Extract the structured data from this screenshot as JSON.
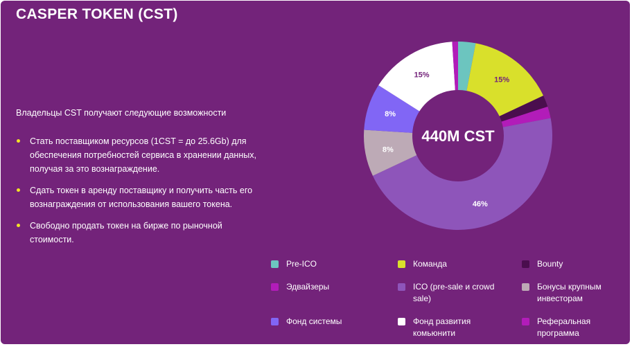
{
  "header": {
    "title": "CASPER TOKEN (CST)"
  },
  "intro": "Владельцы CST получают следующие возможности",
  "bullets": [
    "Стать поставщиком ресурсов (1CST = до 25.6Gb) для обеспечения потребностей сервиса в хранении данных, получая за это вознаграждение.",
    "Сдать токен в аренду поставщику и получить часть его вознаграждения от использования вашего токена.",
    "Свободно продать токен на бирже по рыночной стоимости."
  ],
  "colors": {
    "background": "#73237a",
    "bullet": "#f2e227"
  },
  "chart_data": {
    "type": "pie",
    "center_label": "440M CST",
    "slices": [
      {
        "name": "Pre-ICO",
        "value": 3,
        "label": "",
        "color": "#6cc5bf"
      },
      {
        "name": "Команда",
        "value": 15,
        "label": "15%",
        "color": "#d9e02b"
      },
      {
        "name": "Bounty",
        "value": 2,
        "label": "",
        "color": "#4a0e4e"
      },
      {
        "name": "Эдвайзеры",
        "value": 2,
        "label": "",
        "color": "#b21cb9"
      },
      {
        "name": "ICO (pre-sale и crowd sale)",
        "value": 46,
        "label": "46%",
        "color": "#8e55ba"
      },
      {
        "name": "Бонусы крупным инвесторам",
        "value": 8,
        "label": "8%",
        "color": "#bdaab6"
      },
      {
        "name": "Фонд системы",
        "value": 8,
        "label": "8%",
        "color": "#8166f5"
      },
      {
        "name": "Фонд развития комьюнити",
        "value": 15,
        "label": "15%",
        "color": "#ffffff"
      },
      {
        "name": "Реферальная программа",
        "value": 1,
        "label": "",
        "color": "#b21cb9"
      }
    ]
  }
}
